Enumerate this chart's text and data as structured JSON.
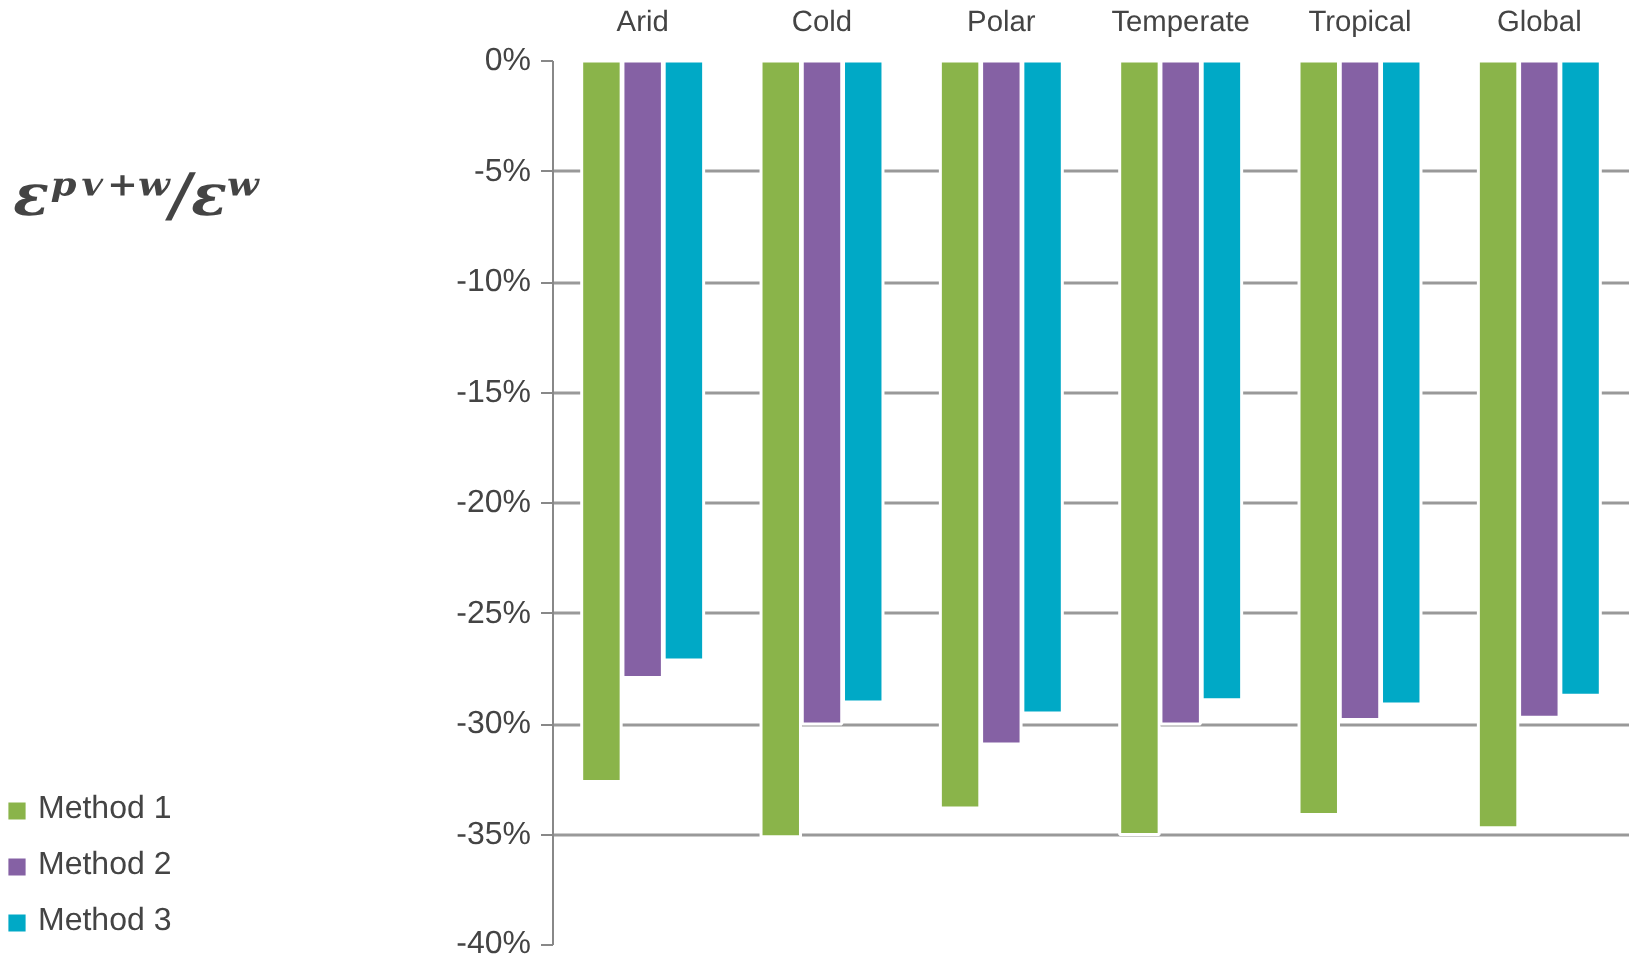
{
  "chart_data": {
    "type": "bar",
    "ylabel": "εᵖᵛ⁺ʷ/εʷ",
    "categories": [
      "Arid",
      "Cold",
      "Polar",
      "Temperate",
      "Tropical",
      "Global"
    ],
    "series": [
      {
        "name": "Method 1",
        "color": "#8ab44a",
        "values": [
          -32.6,
          -35.1,
          -33.8,
          -35.0,
          -34.1,
          -34.7
        ]
      },
      {
        "name": "Method 2",
        "color": "#8561a4",
        "values": [
          -27.9,
          -30.0,
          -30.9,
          -30.0,
          -29.8,
          -29.7
        ]
      },
      {
        "name": "Method 3",
        "color": "#00a9c6",
        "values": [
          -27.1,
          -29.0,
          -29.5,
          -28.9,
          -29.1,
          -28.7
        ]
      }
    ],
    "ylim": [
      -40,
      0
    ],
    "yticks": [
      {
        "value": 0,
        "label": "0%"
      },
      {
        "value": -5,
        "label": "-5%"
      },
      {
        "value": -10,
        "label": "-10%"
      },
      {
        "value": -15,
        "label": "-15%"
      },
      {
        "value": -20,
        "label": "-20%"
      },
      {
        "value": -25,
        "label": "-25%"
      },
      {
        "value": -30,
        "label": "-30%"
      },
      {
        "value": -35,
        "label": "-35%"
      },
      {
        "value": -40,
        "label": "-40%"
      }
    ],
    "grid": "y",
    "legend": "bottom left"
  }
}
